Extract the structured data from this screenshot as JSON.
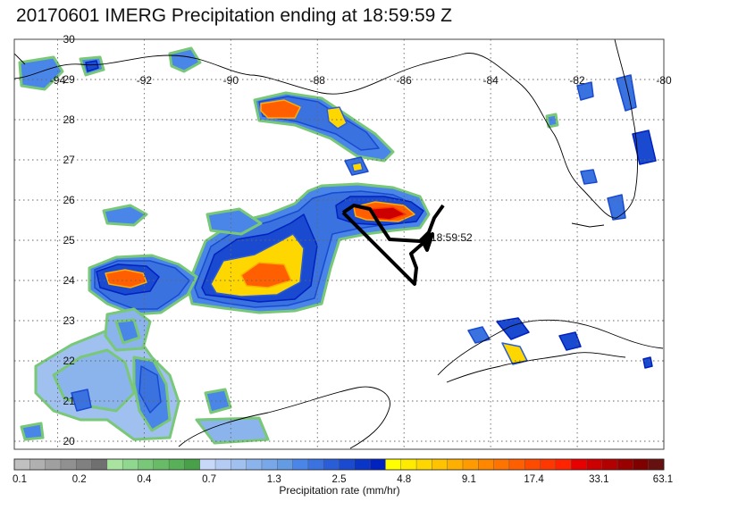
{
  "title": "20170601 IMERG Precipitation ending at 18:59:59 Z",
  "map": {
    "lon_labels": [
      "-94",
      "-92",
      "-90",
      "-88",
      "-86",
      "-84",
      "-82",
      "-80"
    ],
    "lat_labels": [
      "30",
      "29",
      "28",
      "27",
      "26",
      "25",
      "24",
      "23",
      "22",
      "21",
      "20"
    ],
    "lon_range": [
      -95,
      -80
    ],
    "lat_range": [
      19.8,
      30
    ],
    "gridlines": "dotted",
    "coastline_color": "#000000",
    "track_color": "#000000",
    "track_label": "18:59:52"
  },
  "colorbar": {
    "label": "Precipitation rate (mm/hr)",
    "tick_labels": [
      "0.1",
      "0.2",
      "0.4",
      "0.7",
      "1.3",
      "2.5",
      "4.8",
      "9.1",
      "17.4",
      "33.1",
      "63.1"
    ],
    "colors": [
      "#c0c0c0",
      "#b0b0b0",
      "#a0a0a0",
      "#909090",
      "#808080",
      "#707070",
      "#a8e4a0",
      "#90d890",
      "#78c878",
      "#68bc68",
      "#58b058",
      "#48a048",
      "#c8d8f8",
      "#b4ccf4",
      "#a0c0f0",
      "#8cb4ec",
      "#78a8e8",
      "#649ce4",
      "#4a86e8",
      "#3a72e0",
      "#2a5ed8",
      "#1a4ad0",
      "#0a36c8",
      "#0022c0",
      "#ffff00",
      "#ffeb00",
      "#ffd700",
      "#ffc300",
      "#ffaf00",
      "#ff9b00",
      "#ff8700",
      "#ff7300",
      "#ff5f00",
      "#ff4b00",
      "#ff3700",
      "#ff2300",
      "#e60000",
      "#cc0000",
      "#b30000",
      "#990000",
      "#800000",
      "#661010"
    ]
  }
}
